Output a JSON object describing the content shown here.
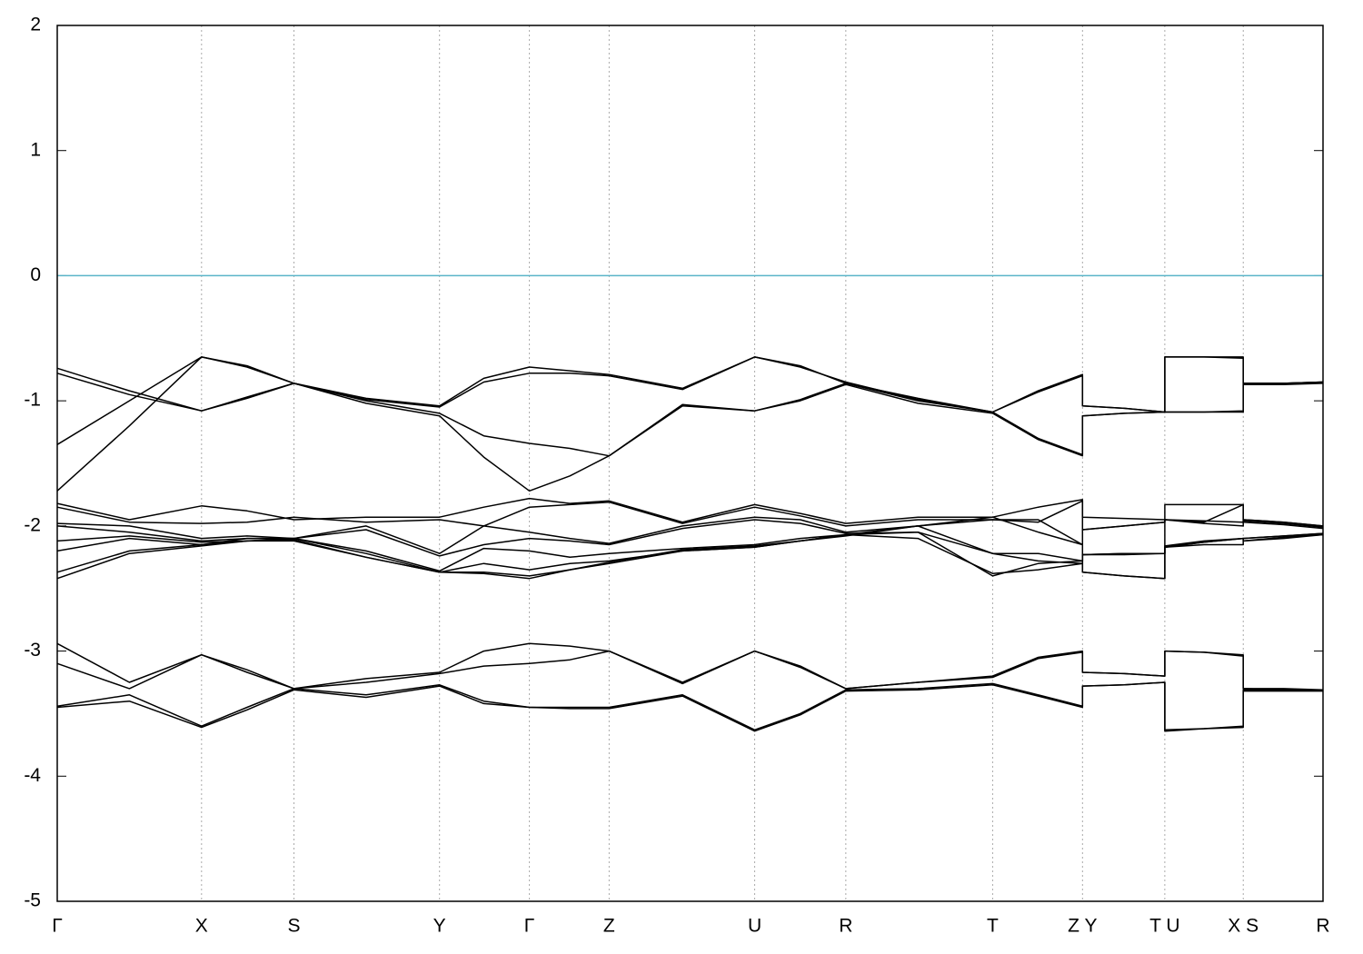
{
  "chart_data": {
    "type": "line",
    "x": [
      0,
      0.057,
      0.114,
      0.15,
      0.187,
      0.244,
      0.302,
      0.337,
      0.373,
      0.405,
      0.436,
      0.494,
      0.551,
      0.587,
      0.623,
      0.68,
      0.739,
      0.775,
      0.81,
      0.81,
      0.843,
      0.875,
      0.875,
      0.906,
      0.937,
      0.937,
      0.969,
      1.0
    ],
    "xlim": [
      0,
      1
    ],
    "xticks": [
      {
        "value": 0,
        "label": "Γ"
      },
      {
        "value": 0.114,
        "label": "X"
      },
      {
        "value": 0.187,
        "label": "S"
      },
      {
        "value": 0.302,
        "label": "Y"
      },
      {
        "value": 0.373,
        "label": "Γ"
      },
      {
        "value": 0.436,
        "label": "Z"
      },
      {
        "value": 0.551,
        "label": "U"
      },
      {
        "value": 0.623,
        "label": "R"
      },
      {
        "value": 0.739,
        "label": "T"
      },
      {
        "value": 0.81,
        "label": "Z Y"
      },
      {
        "value": 0.875,
        "label": "T U"
      },
      {
        "value": 0.937,
        "label": "X S"
      },
      {
        "value": 1.0,
        "label": "R"
      }
    ],
    "ylim": [
      -5,
      2
    ],
    "yticks": [
      -5,
      -4,
      -3,
      -2,
      -1,
      0,
      1,
      2
    ],
    "grid": true,
    "hlines": [
      {
        "value": 0,
        "color": "#5ab4c8"
      }
    ],
    "series": [
      {
        "color": "#000000",
        "values": [
          -0.74,
          -0.92,
          -1.08,
          -0.98,
          -0.86,
          -0.98,
          -1.04,
          -0.82,
          -0.73,
          -0.76,
          -0.79,
          -0.9,
          -0.65,
          -0.72,
          -0.86,
          -0.98,
          -1.09,
          -0.92,
          -0.79,
          -1.04,
          -1.06,
          -1.09,
          -0.65,
          -0.65,
          -0.65,
          -0.86,
          -0.86,
          -0.85
        ]
      },
      {
        "color": "#000000",
        "values": [
          -0.78,
          -0.95,
          -1.08,
          -0.97,
          -0.86,
          -0.99,
          -1.05,
          -0.85,
          -0.78,
          -0.78,
          -0.8,
          -0.91,
          -0.65,
          -0.73,
          -0.85,
          -0.99,
          -1.09,
          -0.93,
          -0.8,
          -1.04,
          -1.06,
          -1.09,
          -0.65,
          -0.65,
          -0.66,
          -0.86,
          -0.86,
          -0.85
        ]
      },
      {
        "color": "#000000",
        "values": [
          -1.35,
          -1.0,
          -0.65,
          -0.73,
          -0.86,
          -1.0,
          -1.1,
          -1.28,
          -1.34,
          -1.38,
          -1.44,
          -1.03,
          -1.08,
          -0.99,
          -0.86,
          -1.0,
          -1.09,
          -1.3,
          -1.43,
          -1.12,
          -1.1,
          -1.09,
          -1.09,
          -1.09,
          -1.08,
          -0.86,
          -0.86,
          -0.85
        ]
      },
      {
        "color": "#000000",
        "values": [
          -1.72,
          -1.2,
          -0.65,
          -0.72,
          -0.86,
          -1.02,
          -1.12,
          -1.45,
          -1.72,
          -1.6,
          -1.44,
          -1.04,
          -1.08,
          -1.0,
          -0.87,
          -1.02,
          -1.1,
          -1.31,
          -1.44,
          -1.12,
          -1.1,
          -1.09,
          -1.09,
          -1.09,
          -1.09,
          -0.87,
          -0.87,
          -0.86
        ]
      },
      {
        "color": "#000000",
        "values": [
          -1.82,
          -1.95,
          -1.84,
          -1.88,
          -1.95,
          -1.93,
          -1.93,
          -1.85,
          -1.78,
          -1.82,
          -1.8,
          -1.97,
          -1.83,
          -1.9,
          -1.98,
          -1.93,
          -1.93,
          -1.85,
          -1.79,
          -1.93,
          -1.94,
          -1.95,
          -1.83,
          -1.83,
          -1.83,
          -1.95,
          -1.97,
          -2.0
        ]
      },
      {
        "color": "#000000",
        "values": [
          -1.85,
          -1.97,
          -1.98,
          -1.97,
          -1.93,
          -1.97,
          -1.95,
          -2.0,
          -1.85,
          -1.83,
          -1.81,
          -1.98,
          -1.85,
          -1.92,
          -2.0,
          -1.95,
          -1.95,
          -1.95,
          -2.15,
          -2.03,
          -2.0,
          -1.97,
          -1.95,
          -1.98,
          -2.0,
          -1.96,
          -1.98,
          -2.01
        ]
      },
      {
        "color": "#000000",
        "values": [
          -1.98,
          -2.0,
          -2.1,
          -2.08,
          -2.1,
          -2.0,
          -2.22,
          -2.0,
          -2.05,
          -2.1,
          -2.14,
          -2.0,
          -1.93,
          -1.95,
          -2.05,
          -2.0,
          -2.22,
          -2.22,
          -2.28,
          -2.23,
          -2.22,
          -2.22,
          -2.17,
          -2.15,
          -2.15,
          -2.1,
          -2.08,
          -2.06
        ]
      },
      {
        "color": "#000000",
        "values": [
          -2.0,
          -2.05,
          -2.12,
          -2.1,
          -2.1,
          -2.03,
          -2.24,
          -2.15,
          -2.1,
          -2.12,
          -2.15,
          -2.02,
          -1.95,
          -1.98,
          -2.06,
          -2.05,
          -2.22,
          -2.28,
          -2.3,
          -2.23,
          -2.23,
          -2.22,
          -2.17,
          -2.13,
          -2.1,
          -2.12,
          -2.09,
          -2.07
        ]
      },
      {
        "color": "#000000",
        "values": [
          -2.12,
          -2.08,
          -2.13,
          -2.12,
          -2.1,
          -2.2,
          -2.36,
          -2.18,
          -2.2,
          -2.25,
          -2.22,
          -2.18,
          -2.15,
          -2.1,
          -2.07,
          -2.0,
          -1.93,
          -2.05,
          -2.15,
          -2.37,
          -2.4,
          -2.42,
          -2.17,
          -2.13,
          -2.1,
          -2.1,
          -2.08,
          -2.06
        ]
      },
      {
        "color": "#000000",
        "values": [
          -2.2,
          -2.1,
          -2.15,
          -2.12,
          -2.12,
          -2.25,
          -2.37,
          -2.3,
          -2.35,
          -2.3,
          -2.28,
          -2.2,
          -2.17,
          -2.12,
          -2.07,
          -2.1,
          -2.38,
          -2.35,
          -2.3,
          -2.37,
          -2.4,
          -2.42,
          -1.95,
          -1.97,
          -1.83,
          -1.97,
          -1.99,
          -2.02
        ]
      },
      {
        "color": "#000000",
        "values": [
          -2.37,
          -2.2,
          -2.15,
          -2.1,
          -2.1,
          -2.22,
          -2.37,
          -2.37,
          -2.4,
          -2.35,
          -2.3,
          -2.2,
          -2.17,
          -2.12,
          -2.07,
          -2.05,
          -2.4,
          -2.3,
          -2.28,
          -2.23,
          -2.22,
          -2.22,
          -2.16,
          -2.12,
          -2.1,
          -2.12,
          -2.1,
          -2.07
        ]
      },
      {
        "color": "#000000",
        "values": [
          -2.42,
          -2.22,
          -2.16,
          -2.12,
          -2.11,
          -2.25,
          -2.37,
          -2.38,
          -2.42,
          -2.35,
          -2.29,
          -2.19,
          -2.16,
          -2.12,
          -2.08,
          -2.0,
          -1.95,
          -1.97,
          -1.8,
          -2.03,
          -2.0,
          -1.97,
          -1.95,
          -1.96,
          -1.97,
          -1.95,
          -1.97,
          -2.0
        ]
      },
      {
        "color": "#000000",
        "values": [
          -2.94,
          -3.25,
          -3.03,
          -3.15,
          -3.3,
          -3.22,
          -3.17,
          -3.0,
          -2.94,
          -2.96,
          -3.0,
          -3.25,
          -3.0,
          -3.12,
          -3.3,
          -3.25,
          -3.2,
          -3.05,
          -3.0,
          -3.17,
          -3.18,
          -3.2,
          -3.0,
          -3.01,
          -3.03,
          -3.3,
          -3.3,
          -3.31
        ]
      },
      {
        "color": "#000000",
        "values": [
          -3.1,
          -3.3,
          -3.03,
          -3.17,
          -3.3,
          -3.25,
          -3.18,
          -3.12,
          -3.1,
          -3.07,
          -3.0,
          -3.26,
          -3.0,
          -3.13,
          -3.3,
          -3.25,
          -3.21,
          -3.06,
          -3.01,
          -3.17,
          -3.18,
          -3.2,
          -3.0,
          -3.01,
          -3.04,
          -3.3,
          -3.31,
          -3.31
        ]
      },
      {
        "color": "#000000",
        "values": [
          -3.44,
          -3.35,
          -3.6,
          -3.45,
          -3.3,
          -3.35,
          -3.27,
          -3.4,
          -3.45,
          -3.45,
          -3.45,
          -3.35,
          -3.63,
          -3.5,
          -3.31,
          -3.3,
          -3.26,
          -3.35,
          -3.44,
          -3.28,
          -3.27,
          -3.25,
          -3.63,
          -3.62,
          -3.6,
          -3.31,
          -3.31,
          -3.31
        ]
      },
      {
        "color": "#000000",
        "values": [
          -3.45,
          -3.4,
          -3.61,
          -3.47,
          -3.31,
          -3.37,
          -3.28,
          -3.42,
          -3.45,
          -3.46,
          -3.46,
          -3.36,
          -3.64,
          -3.51,
          -3.32,
          -3.31,
          -3.27,
          -3.36,
          -3.45,
          -3.28,
          -3.27,
          -3.25,
          -3.64,
          -3.62,
          -3.61,
          -3.32,
          -3.32,
          -3.32
        ]
      }
    ]
  }
}
